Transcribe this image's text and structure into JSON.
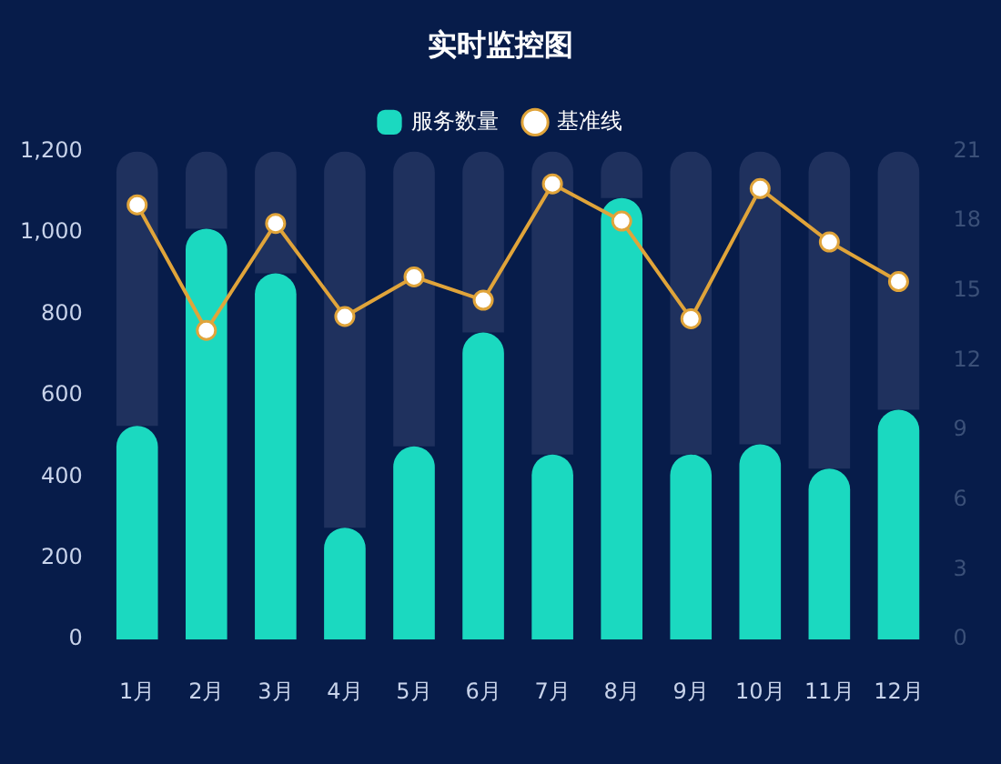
{
  "chart_data": {
    "type": "bar",
    "title": "实时监控图",
    "categories": [
      "1月",
      "2月",
      "3月",
      "4月",
      "5月",
      "6月",
      "7月",
      "8月",
      "9月",
      "10月",
      "11月",
      "12月"
    ],
    "series": [
      {
        "name": "服务数量",
        "color": "#1bd9c0",
        "values": [
          525,
          1010,
          900,
          275,
          475,
          755,
          455,
          1085,
          455,
          480,
          420,
          565
        ]
      },
      {
        "color": "#1f315e",
        "values": [
          675,
          190,
          300,
          925,
          725,
          445,
          745,
          115,
          745,
          720,
          780,
          635
        ]
      },
      {
        "name": "基准线",
        "type": "line",
        "axis": "y2",
        "color": "#e0a43a",
        "values": [
          18.7,
          13.3,
          17.9,
          13.9,
          15.6,
          14.6,
          19.6,
          18.0,
          13.8,
          19.4,
          17.1,
          15.4
        ]
      }
    ],
    "ylim": [
      0,
      1200
    ],
    "yticks": [
      0,
      200,
      400,
      600,
      800,
      {
        "value": 1000,
        "label": "1,000"
      },
      {
        "value": 1200,
        "label": "1,200"
      }
    ],
    "y2lim": [
      0,
      21
    ],
    "y2ticks": [
      0,
      3,
      6,
      9,
      12,
      15,
      18,
      21
    ],
    "stacked": true,
    "legend": "top",
    "marker": "circle",
    "line_style": "solid",
    "grid": false
  }
}
